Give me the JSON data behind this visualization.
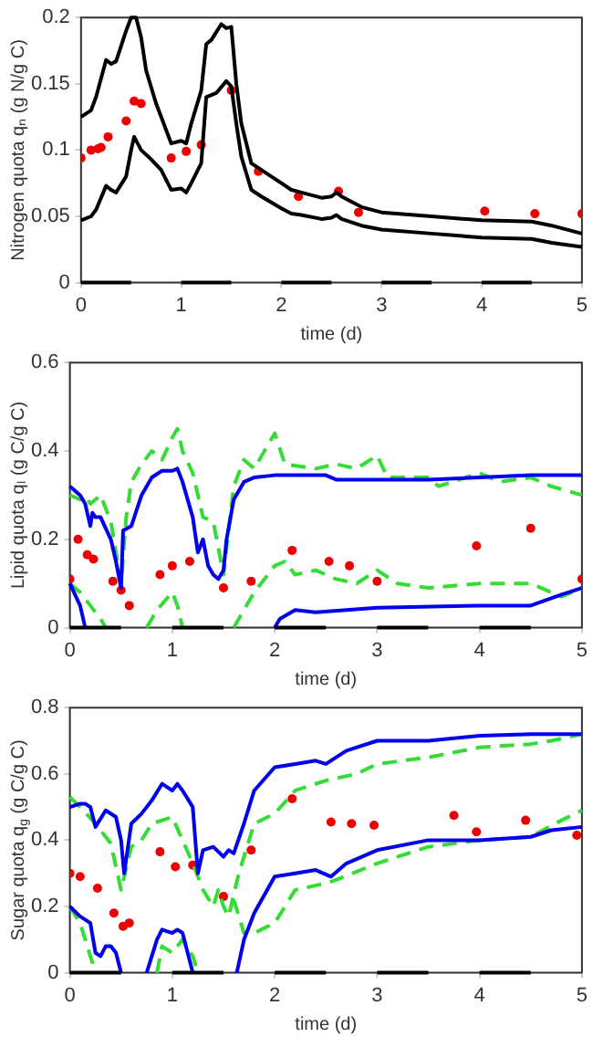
{
  "chart_data": [
    {
      "type": "line",
      "ylabel": "Nitrogen quota qₙ (g N/g C)",
      "xlabel": "time (d)",
      "xlim": [
        0,
        5
      ],
      "xticks": [
        0,
        1,
        2,
        3,
        4,
        5
      ],
      "ylim": [
        0,
        0.2
      ],
      "yticks": [
        0,
        0.05,
        0.1,
        0.15,
        0.2
      ],
      "grid": false,
      "legend": false,
      "line_style": "solid",
      "marker": "none",
      "series": [
        {
          "type": "line",
          "color": "#000000",
          "x": [
            0,
            0.5,
            0.75,
            1,
            1.5,
            1.75,
            2,
            2.5,
            2.75,
            3,
            3.5,
            3.75,
            4,
            4.5
          ],
          "values": [
            0,
            0,
            null,
            0,
            0,
            null,
            0,
            0,
            null,
            0,
            0,
            null,
            0,
            0
          ]
        },
        {
          "type": "line",
          "color": "#000000",
          "x": [
            0,
            0.1,
            0.15,
            0.25,
            0.3,
            0.35,
            0.45,
            0.5,
            0.55,
            0.6,
            0.65,
            0.75,
            0.9,
            1.0,
            1.05,
            1.1,
            1.2,
            1.25,
            1.3,
            1.4,
            1.45,
            1.5,
            1.55,
            1.6,
            1.7,
            1.8,
            2.0,
            2.1,
            2.2,
            2.4,
            2.5,
            2.55,
            2.6,
            2.8,
            3.0,
            3.5,
            4.0,
            4.5,
            4.7,
            5
          ],
          "values": [
            0.125,
            0.13,
            0.14,
            0.168,
            0.165,
            0.167,
            0.19,
            0.2,
            0.2,
            0.185,
            0.16,
            0.135,
            0.105,
            0.107,
            0.105,
            0.12,
            0.145,
            0.18,
            0.183,
            0.195,
            0.192,
            0.193,
            0.15,
            0.12,
            0.09,
            0.085,
            0.075,
            0.07,
            0.068,
            0.064,
            0.065,
            0.068,
            0.065,
            0.057,
            0.053,
            0.05,
            0.047,
            0.046,
            0.043,
            0.037
          ]
        },
        {
          "type": "line",
          "color": "#000000",
          "x": [
            0,
            0.1,
            0.15,
            0.25,
            0.3,
            0.35,
            0.45,
            0.5,
            0.53,
            0.6,
            0.7,
            0.8,
            0.9,
            1.0,
            1.05,
            1.1,
            1.2,
            1.25,
            1.35,
            1.45,
            1.5,
            1.55,
            1.6,
            1.7,
            1.8,
            2.0,
            2.1,
            2.2,
            2.4,
            2.5,
            2.55,
            2.6,
            2.8,
            3.0,
            3.5,
            4.0,
            4.5,
            4.7,
            5
          ],
          "values": [
            0.047,
            0.05,
            0.055,
            0.073,
            0.07,
            0.068,
            0.08,
            0.1,
            0.11,
            0.1,
            0.093,
            0.085,
            0.07,
            0.071,
            0.068,
            0.075,
            0.09,
            0.14,
            0.143,
            0.152,
            0.148,
            0.12,
            0.095,
            0.07,
            0.065,
            0.056,
            0.052,
            0.051,
            0.048,
            0.049,
            0.051,
            0.048,
            0.043,
            0.04,
            0.037,
            0.034,
            0.033,
            0.03,
            0.027
          ]
        },
        {
          "type": "scatter",
          "color": "#ee0000",
          "marker": "circle",
          "x": [
            0,
            0.1,
            0.17,
            0.2,
            0.27,
            0.45,
            0.53,
            0.6,
            0.9,
            1.05,
            1.2,
            1.5,
            1.77,
            2.17,
            2.57,
            2.77,
            4.03,
            4.53,
            5
          ],
          "values": [
            0.094,
            0.1,
            0.101,
            0.102,
            0.11,
            0.122,
            0.137,
            0.135,
            0.094,
            0.099,
            0.104,
            0.145,
            0.084,
            0.065,
            0.069,
            0.053,
            0.054,
            0.052,
            0.052
          ]
        }
      ]
    },
    {
      "type": "line",
      "ylabel": "Lipid quota qₗ (g C/g C)",
      "xlabel": "time (d)",
      "xlim": [
        0,
        5
      ],
      "xticks": [
        0,
        1,
        2,
        3,
        4,
        5
      ],
      "ylim": [
        0,
        0.6
      ],
      "yticks": [
        0,
        0.2,
        0.4,
        0.6
      ],
      "grid": false,
      "legend": false,
      "line_style": "solid",
      "marker": "none",
      "series": [
        {
          "type": "line",
          "color": "#000000",
          "x": [
            0,
            0.5,
            0.75,
            1,
            1.5,
            1.75,
            2,
            2.5,
            2.75,
            3,
            3.5,
            3.75,
            4,
            4.5
          ],
          "values": [
            0,
            0,
            null,
            0,
            0,
            null,
            0,
            0,
            null,
            0,
            0,
            null,
            0,
            0
          ]
        },
        {
          "type": "line",
          "color": "#0000ee",
          "x": [
            0,
            0.1,
            0.15,
            0.18,
            0.2,
            0.22,
            0.25,
            0.3,
            0.4,
            0.45,
            0.5,
            0.52,
            0.6,
            0.7,
            0.8,
            0.9,
            1.0,
            1.05,
            1.1,
            1.2,
            1.25,
            1.3,
            1.35,
            1.4,
            1.45,
            1.5,
            1.53,
            1.6,
            1.7,
            1.8,
            2.0,
            2.5,
            2.6,
            3.0,
            3.5,
            4,
            4.5,
            5
          ],
          "values": [
            0.32,
            0.3,
            0.28,
            0.25,
            0.23,
            0.26,
            0.25,
            0.25,
            0.2,
            0.15,
            0.09,
            0.22,
            0.23,
            0.3,
            0.34,
            0.355,
            0.355,
            0.36,
            0.33,
            0.25,
            0.17,
            0.2,
            0.14,
            0.12,
            0.11,
            0.13,
            0.2,
            0.29,
            0.33,
            0.34,
            0.345,
            0.345,
            0.335,
            0.335,
            0.335,
            0.34,
            0.345,
            0.345
          ]
        },
        {
          "type": "line",
          "color": "#0000ee",
          "x": [
            0,
            0.1,
            0.15,
            1.0,
            2.0,
            2.05,
            2.2,
            2.4,
            3,
            4,
            4.5,
            4.8,
            5
          ],
          "values": [
            0.1,
            0.05,
            0,
            null,
            0,
            0.02,
            0.04,
            0.035,
            0.045,
            0.05,
            0.05,
            0.075,
            0.09
          ]
        },
        {
          "type": "line",
          "color": "#33dd33",
          "line_style": "dashed",
          "x": [
            0,
            0.1,
            0.15,
            0.2,
            0.3,
            0.4,
            0.5,
            0.55,
            0.6,
            0.7,
            0.8,
            0.9,
            1.0,
            1.05,
            1.1,
            1.2,
            1.3,
            1.4,
            1.5,
            1.6,
            1.7,
            1.8,
            1.9,
            2.0,
            2.1,
            2.4,
            2.6,
            2.8,
            3.0,
            3.1,
            3.5,
            3.6,
            4,
            4.2,
            4.5,
            4.7,
            5
          ],
          "values": [
            0.3,
            0.29,
            0.3,
            0.28,
            0.3,
            0.24,
            0.1,
            0.25,
            0.33,
            0.37,
            0.4,
            0.38,
            0.43,
            0.45,
            0.4,
            0.35,
            0.25,
            0.24,
            0.12,
            0.32,
            0.38,
            0.36,
            0.4,
            0.44,
            0.37,
            0.36,
            0.37,
            0.36,
            0.39,
            0.34,
            0.34,
            0.32,
            0.35,
            0.33,
            0.34,
            0.32,
            0.3
          ]
        },
        {
          "type": "line",
          "color": "#33dd33",
          "line_style": "dashed",
          "x": [
            0,
            0.1,
            0.2,
            0.3,
            0.35,
            0.55,
            0.75,
            0.85,
            1.0,
            1.05,
            1.1,
            1.35,
            1.6,
            1.7,
            1.8,
            2.0,
            2.1,
            2.2,
            2.4,
            2.6,
            2.8,
            3.0,
            3.2,
            3.5,
            4,
            4.5,
            4.8,
            5
          ],
          "values": [
            0.1,
            0.08,
            0.05,
            0.02,
            0,
            null,
            0,
            0.04,
            0.08,
            0.05,
            0,
            null,
            0,
            0.04,
            0.08,
            0.14,
            0.15,
            0.12,
            0.13,
            0.11,
            0.1,
            0.13,
            0.1,
            0.09,
            0.1,
            0.1,
            0.07,
            0.09
          ]
        },
        {
          "type": "scatter",
          "color": "#ee0000",
          "marker": "circle",
          "x": [
            0,
            0.08,
            0.17,
            0.23,
            0.42,
            0.5,
            0.58,
            0.88,
            1.0,
            1.17,
            1.5,
            1.77,
            2.17,
            2.53,
            2.73,
            3.0,
            3.97,
            4.5,
            5
          ],
          "values": [
            0.11,
            0.2,
            0.165,
            0.155,
            0.105,
            0.085,
            0.05,
            0.12,
            0.14,
            0.15,
            0.09,
            0.105,
            0.175,
            0.15,
            0.14,
            0.105,
            0.185,
            0.225,
            0.11
          ]
        }
      ]
    },
    {
      "type": "line",
      "ylabel": "Sugar quota q$_{g}$ (g C/g C)",
      "xlabel": "time (d)",
      "xlim": [
        0,
        5
      ],
      "xticks": [
        0,
        1,
        2,
        3,
        4,
        5
      ],
      "ylim": [
        0,
        0.8
      ],
      "yticks": [
        0,
        0.2,
        0.4,
        0.6,
        0.8
      ],
      "grid": false,
      "legend": false,
      "line_style": "solid",
      "marker": "none",
      "series": [
        {
          "type": "line",
          "color": "#000000",
          "x": [
            0,
            0.5,
            0.75,
            1,
            1.5,
            1.75,
            2,
            2.5,
            2.75,
            3,
            3.5,
            3.75,
            4,
            4.5
          ],
          "values": [
            0,
            0,
            null,
            0,
            0,
            null,
            0,
            0,
            null,
            0,
            0,
            null,
            0,
            0
          ]
        },
        {
          "type": "line",
          "color": "#0000ee",
          "x": [
            0,
            0.1,
            0.15,
            0.2,
            0.25,
            0.35,
            0.45,
            0.5,
            0.53,
            0.6,
            0.7,
            0.8,
            0.9,
            1.0,
            1.05,
            1.1,
            1.2,
            1.25,
            1.3,
            1.4,
            1.5,
            1.55,
            1.6,
            1.7,
            1.8,
            2.0,
            2.2,
            2.4,
            2.5,
            2.7,
            3.0,
            3.5,
            4,
            4.5,
            5
          ],
          "values": [
            0.5,
            0.51,
            0.51,
            0.5,
            0.44,
            0.49,
            0.47,
            0.4,
            0.3,
            0.45,
            0.48,
            0.52,
            0.57,
            0.55,
            0.57,
            0.55,
            0.5,
            0.3,
            0.37,
            0.38,
            0.35,
            0.37,
            0.36,
            0.45,
            0.55,
            0.62,
            0.63,
            0.64,
            0.63,
            0.67,
            0.7,
            0.7,
            0.715,
            0.72,
            0.72
          ]
        },
        {
          "type": "line",
          "color": "#0000ee",
          "x": [
            0,
            0.1,
            0.2,
            0.25,
            0.3,
            0.35,
            0.4,
            0.45,
            0.5,
            0.6,
            0.75,
            0.85,
            0.9,
            1.0,
            1.05,
            1.1,
            1.2,
            1.4,
            1.63,
            1.7,
            1.8,
            2.0,
            2.2,
            2.4,
            2.55,
            2.7,
            3.0,
            3.5,
            4,
            4.5,
            4.7,
            5
          ],
          "values": [
            0.2,
            0.17,
            0.15,
            0.06,
            0.05,
            0.08,
            0.08,
            0.06,
            0,
            null,
            0,
            0.1,
            0.13,
            0.12,
            0.13,
            0.12,
            0,
            null,
            0,
            0.1,
            0.18,
            0.29,
            0.3,
            0.31,
            0.29,
            0.33,
            0.37,
            0.4,
            0.4,
            0.41,
            0.43,
            0.44
          ]
        },
        {
          "type": "line",
          "color": "#33dd33",
          "line_style": "dashed",
          "x": [
            0,
            0.1,
            0.25,
            0.4,
            0.5,
            0.6,
            0.7,
            0.8,
            1.0,
            1.1,
            1.2,
            1.3,
            1.4,
            1.45,
            1.5,
            1.55,
            1.65,
            1.8,
            2.0,
            2.2,
            2.5,
            2.8,
            3.0,
            3.5,
            4.0,
            4.5,
            4.7,
            5
          ],
          "values": [
            0.53,
            0.5,
            0.45,
            0.39,
            0.25,
            0.38,
            0.4,
            0.45,
            0.47,
            0.4,
            0.33,
            0.25,
            0.2,
            0.25,
            0.2,
            0.17,
            0.3,
            0.45,
            0.48,
            0.55,
            0.58,
            0.6,
            0.63,
            0.65,
            0.68,
            0.69,
            0.7,
            0.72
          ]
        },
        {
          "type": "line",
          "color": "#33dd33",
          "line_style": "dashed",
          "x": [
            0,
            0.1,
            0.2,
            0.25,
            0.5,
            0.85,
            0.9,
            1.0,
            1.1,
            1.2,
            1.25,
            1.4,
            1.6,
            1.7,
            1.8,
            2.0,
            2.2,
            2.5,
            2.6,
            3.0,
            3.5,
            4.0,
            4.5,
            4.8,
            5
          ],
          "values": [
            0.2,
            0.15,
            0.05,
            0,
            null,
            0,
            0.08,
            0.06,
            0.1,
            0.05,
            0,
            null,
            0.22,
            0.12,
            0.12,
            0.15,
            0.25,
            0.27,
            0.28,
            0.33,
            0.38,
            0.4,
            0.41,
            0.46,
            0.49
          ]
        },
        {
          "type": "scatter",
          "color": "#ee0000",
          "marker": "circle",
          "x": [
            0,
            0.1,
            0.27,
            0.43,
            0.52,
            0.58,
            0.88,
            1.03,
            1.2,
            1.5,
            1.77,
            2.17,
            2.55,
            2.75,
            2.97,
            3.75,
            3.97,
            4.45,
            4.95
          ],
          "values": [
            0.3,
            0.29,
            0.255,
            0.18,
            0.14,
            0.15,
            0.365,
            0.32,
            0.325,
            0.23,
            0.37,
            0.525,
            0.455,
            0.45,
            0.445,
            0.475,
            0.425,
            0.46,
            0.415
          ]
        }
      ]
    }
  ]
}
